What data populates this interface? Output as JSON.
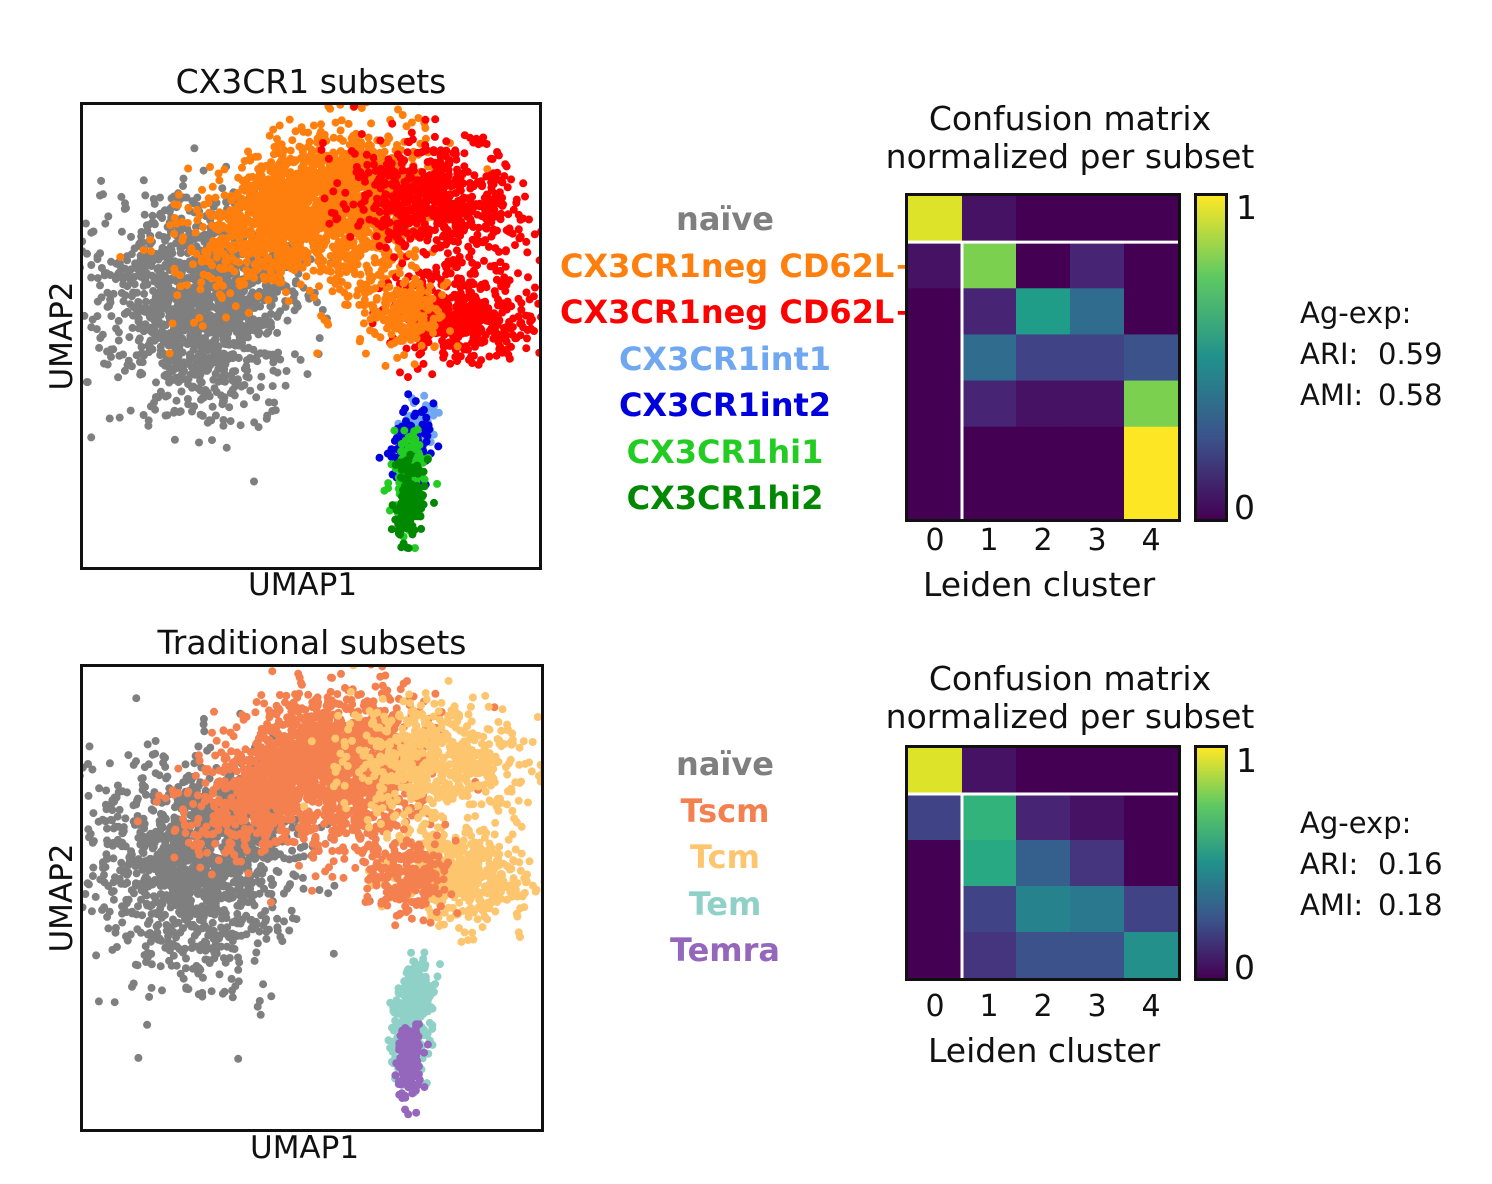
{
  "chart_data": [
    {
      "type": "scatter",
      "title": "CX3CR1 subsets",
      "xlabel": "UMAP1",
      "ylabel": "UMAP2",
      "legend": [
        {
          "label": "naïve",
          "color": "#7f7f7f"
        },
        {
          "label": "CX3CR1neg CD62L+",
          "color": "#ff7f0e"
        },
        {
          "label": "CX3CR1neg CD62L−",
          "color": "#ff0000"
        },
        {
          "label": "CX3CR1int1",
          "color": "#6fa8f0"
        },
        {
          "label": "CX3CR1int2",
          "color": "#0000dd"
        },
        {
          "label": "CX3CR1hi1",
          "color": "#22cc22"
        },
        {
          "label": "CX3CR1hi2",
          "color": "#008800"
        }
      ]
    },
    {
      "type": "heatmap",
      "title": "Confusion matrix\nnormalized per subset",
      "xlabel": "Leiden cluster",
      "x": [
        "0",
        "1",
        "2",
        "3",
        "4"
      ],
      "rows": [
        "naïve",
        "CX3CR1neg CD62L+",
        "CX3CR1neg CD62L−",
        "CX3CR1int1",
        "CX3CR1int2",
        "CX3CR1hi1",
        "CX3CR1hi2"
      ],
      "values": [
        [
          0.95,
          0.05,
          0.0,
          0.0,
          0.0
        ],
        [
          0.05,
          0.8,
          0.0,
          0.1,
          0.0
        ],
        [
          0.0,
          0.1,
          0.55,
          0.35,
          0.0
        ],
        [
          0.0,
          0.35,
          0.2,
          0.2,
          0.25
        ],
        [
          0.0,
          0.1,
          0.05,
          0.05,
          0.8
        ],
        [
          0.0,
          0.0,
          0.0,
          0.0,
          1.0
        ],
        [
          0.0,
          0.0,
          0.0,
          0.0,
          1.0
        ]
      ],
      "colorbar": {
        "min_label": "0",
        "max_label": "1",
        "colormap": "viridis"
      },
      "metrics": {
        "header": "Ag-exp:",
        "ari_label": "ARI:",
        "ari": "0.59",
        "ami_label": "AMI:",
        "ami": "0.58"
      }
    },
    {
      "type": "scatter",
      "title": "Traditional subsets",
      "xlabel": "UMAP1",
      "ylabel": "UMAP2",
      "legend": [
        {
          "label": "naïve",
          "color": "#7f7f7f"
        },
        {
          "label": "Tscm",
          "color": "#f4804f"
        },
        {
          "label": "Tcm",
          "color": "#fdc66e"
        },
        {
          "label": "Tem",
          "color": "#8fd1c7"
        },
        {
          "label": "Temra",
          "color": "#9467bd"
        }
      ]
    },
    {
      "type": "heatmap",
      "title": "Confusion matrix\nnormalized per subset",
      "xlabel": "Leiden cluster",
      "x": [
        "0",
        "1",
        "2",
        "3",
        "4"
      ],
      "rows": [
        "naïve",
        "Tscm",
        "Tcm",
        "Tem",
        "Temra"
      ],
      "values": [
        [
          0.95,
          0.05,
          0.0,
          0.0,
          0.0
        ],
        [
          0.2,
          0.65,
          0.1,
          0.05,
          0.0
        ],
        [
          0.0,
          0.6,
          0.3,
          0.15,
          0.0
        ],
        [
          0.0,
          0.2,
          0.45,
          0.4,
          0.2
        ],
        [
          0.0,
          0.15,
          0.25,
          0.25,
          0.5
        ]
      ],
      "colorbar": {
        "min_label": "0",
        "max_label": "1",
        "colormap": "viridis"
      },
      "metrics": {
        "header": "Ag-exp:",
        "ari_label": "ARI:",
        "ari": "0.16",
        "ami_label": "AMI:",
        "ami": "0.18"
      }
    }
  ]
}
